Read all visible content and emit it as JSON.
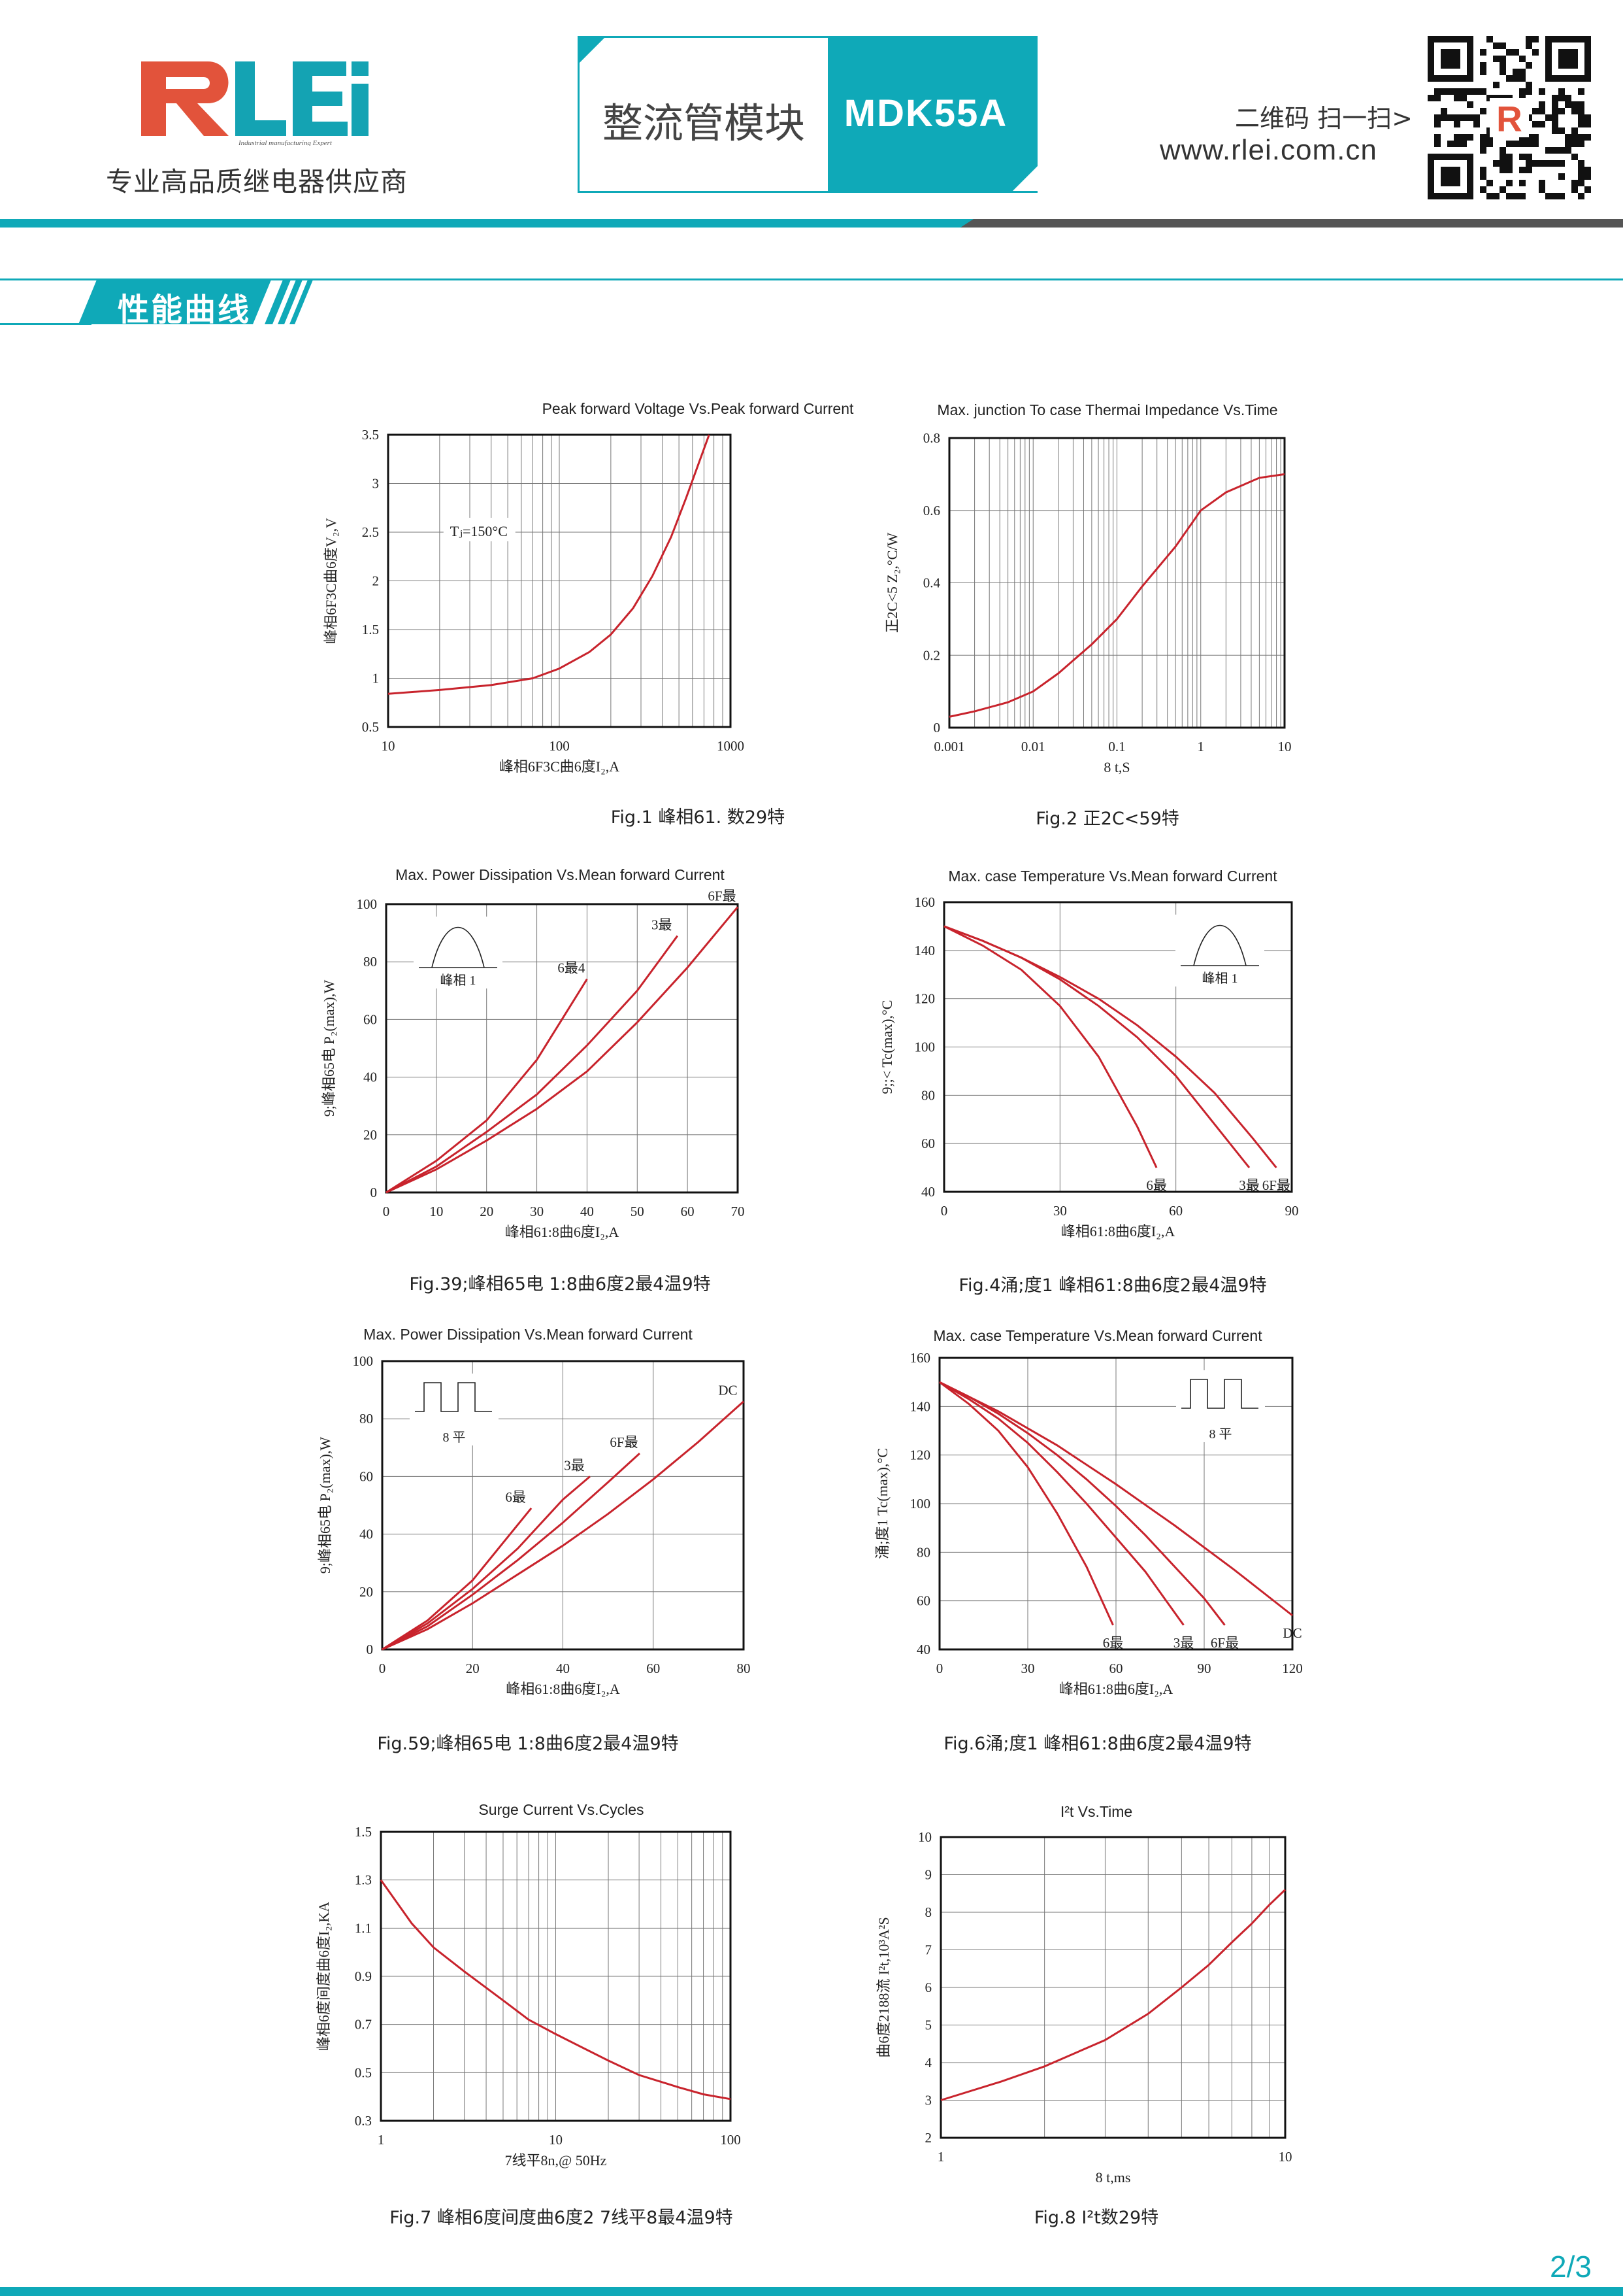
{
  "header": {
    "brand_logo": "RLEi",
    "logo_tagline": "Industrial manufacturing Expert",
    "slogan": "专业高品质继电器供应商",
    "product_name": "整流管模块",
    "model": "MDK55A",
    "qr_text": "二维码 扫一扫>",
    "website": "www.rlei.com.cn",
    "colors": {
      "teal": "#0fa9b8",
      "red": "#e2533b",
      "dark": "#555555",
      "curve": "#c8232c"
    }
  },
  "section": {
    "title": "性能曲线"
  },
  "footer": {
    "page_number": "2/3"
  },
  "figures": [
    {
      "title": "Peak forward Voltage Vs.Peak forward Current",
      "caption": "Fig.1 峰相61. 数29特",
      "annotation": "Tⱼ=150°C",
      "chart_data": {
        "type": "line",
        "xscale": "log",
        "xlim": [
          10,
          1000
        ],
        "ylim": [
          0.5,
          3.5
        ],
        "xticks": [
          "10",
          "100",
          "1000"
        ],
        "yticks": [
          "0.5",
          "1",
          "1.5",
          "2",
          "2.5",
          "3",
          "3.5"
        ],
        "xlabel": "峰相6F3C曲6度I₂,A",
        "ylabel": "峰相6F3C曲6度V₂,V",
        "series": [
          {
            "x": [
              10,
              20,
              40,
              70,
              100,
              150,
              200,
              270,
              350,
              450,
              550,
              650,
              750
            ],
            "y": [
              0.84,
              0.88,
              0.93,
              1.0,
              1.1,
              1.27,
              1.45,
              1.72,
              2.05,
              2.45,
              2.85,
              3.2,
              3.5
            ]
          }
        ]
      }
    },
    {
      "title": "Max. junction To case Thermai Impedance Vs.Time",
      "caption": "Fig.2 正2C<59特",
      "chart_data": {
        "type": "line",
        "xscale": "log",
        "xlim": [
          0.001,
          10
        ],
        "ylim": [
          0,
          0.8
        ],
        "xticks": [
          "0.001",
          "0.01",
          "0.1",
          "1",
          "10"
        ],
        "yticks": [
          "0",
          "0.2",
          "0.4",
          "0.6",
          "0.8"
        ],
        "xlabel": "8  t,S",
        "ylabel": "正2C<5 Z₂,°C/W",
        "series": [
          {
            "x": [
              0.001,
              0.002,
              0.005,
              0.01,
              0.02,
              0.05,
              0.1,
              0.2,
              0.5,
              1,
              2,
              5,
              10
            ],
            "y": [
              0.03,
              0.045,
              0.07,
              0.1,
              0.15,
              0.23,
              0.3,
              0.39,
              0.5,
              0.6,
              0.65,
              0.69,
              0.7
            ]
          }
        ]
      }
    },
    {
      "title": "Max. Power Dissipation Vs.Mean forward Current",
      "caption": "Fig.39;峰相65电 1:8曲6度2最4温9特",
      "icon": "half-sine",
      "icon_label": "峰相 1",
      "chart_data": {
        "type": "line",
        "xlim": [
          0,
          70
        ],
        "ylim": [
          0,
          100
        ],
        "xticks": [
          "0",
          "10",
          "20",
          "30",
          "40",
          "50",
          "60",
          "70"
        ],
        "yticks": [
          "0",
          "20",
          "40",
          "60",
          "80",
          "100"
        ],
        "xlabel": "峰相61:8曲6度I₂,A",
        "ylabel": "9;峰相65电 P₂(max),W",
        "series": [
          {
            "name": "6最4",
            "x": [
              0,
              10,
              20,
              30,
              40
            ],
            "y": [
              0,
              11,
              25,
              46,
              74
            ]
          },
          {
            "name": "3最",
            "x": [
              0,
              10,
              20,
              30,
              40,
              50,
              58
            ],
            "y": [
              0,
              9,
              21,
              34,
              51,
              70,
              89
            ]
          },
          {
            "name": "6F最",
            "x": [
              0,
              10,
              20,
              30,
              40,
              50,
              60,
              70
            ],
            "y": [
              0,
              8,
              18,
              29,
              42,
              59,
              78,
              99
            ]
          }
        ]
      }
    },
    {
      "title": "Max. case Temperature Vs.Mean forward Current",
      "caption": "Fig.4涌;度1 峰相61:8曲6度2最4温9特",
      "icon": "half-sine",
      "icon_label": "峰相 1",
      "chart_data": {
        "type": "line",
        "xlim": [
          0,
          90
        ],
        "ylim": [
          40,
          160
        ],
        "xticks": [
          "0",
          "30",
          "60",
          "90"
        ],
        "yticks": [
          "40",
          "60",
          "80",
          "100",
          "120",
          "140",
          "160"
        ],
        "xlabel": "峰相61:8曲6度I₂,A",
        "ylabel": "9;;< Tc(max),°C",
        "series": [
          {
            "name": "6最",
            "x": [
              0,
              10,
              20,
              30,
              40,
              50,
              55
            ],
            "y": [
              150,
              142,
              132,
              117,
              96,
              67,
              50
            ]
          },
          {
            "name": "3最",
            "x": [
              0,
              10,
              20,
              30,
              40,
              50,
              60,
              70,
              79
            ],
            "y": [
              150,
              144,
              137,
              128,
              117,
              104,
              88,
              68,
              50
            ]
          },
          {
            "name": "6F最",
            "x": [
              0,
              10,
              20,
              30,
              40,
              50,
              60,
              70,
              80,
              86
            ],
            "y": [
              150,
              144,
              137,
              129,
              120,
              109,
              96,
              81,
              62,
              50
            ]
          }
        ]
      }
    },
    {
      "title": "Max. Power Dissipation Vs.Mean forward Current",
      "caption": "Fig.59;峰相65电 1:8曲6度2最4温9特",
      "icon": "square-wave",
      "icon_label": "8 平",
      "chart_data": {
        "type": "line",
        "xlim": [
          0,
          80
        ],
        "ylim": [
          0,
          100
        ],
        "xticks": [
          "0",
          "20",
          "40",
          "60",
          "80"
        ],
        "yticks": [
          "0",
          "20",
          "40",
          "60",
          "80",
          "100"
        ],
        "xlabel": "峰相61:8曲6度I₂,A",
        "ylabel": "9;峰相65电 P₂(max),W",
        "series": [
          {
            "name": "6最",
            "x": [
              0,
              10,
              20,
              33
            ],
            "y": [
              0,
              10,
              24,
              49
            ]
          },
          {
            "name": "3最",
            "x": [
              0,
              10,
              20,
              30,
              40,
              46
            ],
            "y": [
              0,
              9,
              21,
              35,
              52,
              60
            ]
          },
          {
            "name": "6F最",
            "x": [
              0,
              10,
              20,
              30,
              40,
              50,
              57
            ],
            "y": [
              0,
              8,
              19,
              31,
              44,
              58,
              68
            ]
          },
          {
            "name": "DC",
            "x": [
              0,
              10,
              20,
              30,
              40,
              50,
              60,
              70,
              80
            ],
            "y": [
              0,
              7,
              16,
              26,
              36,
              47,
              59,
              72,
              86
            ]
          }
        ]
      }
    },
    {
      "title": "Max. case Temperature Vs.Mean forward Current",
      "caption": "Fig.6涌;度1 峰相61:8曲6度2最4温9特",
      "icon": "square-wave",
      "icon_label": "8 平",
      "chart_data": {
        "type": "line",
        "xlim": [
          0,
          120
        ],
        "ylim": [
          40,
          160
        ],
        "xticks": [
          "0",
          "30",
          "60",
          "90",
          "120"
        ],
        "yticks": [
          "40",
          "60",
          "80",
          "100",
          "120",
          "140",
          "160"
        ],
        "xlabel": "峰相61:8曲6度I₂,A",
        "ylabel": "涌;度1 Tc(max),°C",
        "series": [
          {
            "name": "6最",
            "x": [
              0,
              10,
              20,
              30,
              40,
              50,
              59
            ],
            "y": [
              150,
              141,
              130,
              115,
              96,
              74,
              50
            ]
          },
          {
            "name": "3最",
            "x": [
              0,
              10,
              20,
              30,
              40,
              50,
              60,
              70,
              83
            ],
            "y": [
              150,
              143,
              135,
              125,
              113,
              100,
              86,
              72,
              50
            ]
          },
          {
            "name": "6F最",
            "x": [
              0,
              10,
              20,
              30,
              40,
              50,
              60,
              70,
              80,
              90,
              97
            ],
            "y": [
              150,
              144,
              137,
              129,
              120,
              110,
              99,
              87,
              74,
              61,
              50
            ]
          },
          {
            "name": "DC",
            "x": [
              0,
              20,
              40,
              60,
              80,
              100,
              120
            ],
            "y": [
              150,
              138,
              124,
              108,
              91,
              73,
              54
            ]
          }
        ]
      }
    },
    {
      "title": "Surge Current Vs.Cycles",
      "caption": "Fig.7 峰相6度间度曲6度2 7线平8最4温9特",
      "chart_data": {
        "type": "line",
        "xscale": "log",
        "xlim": [
          1,
          100
        ],
        "ylim": [
          0.3,
          1.5
        ],
        "xticks": [
          "1",
          "10",
          "100"
        ],
        "yticks": [
          "0.3",
          "0.5",
          "0.7",
          "0.9",
          "1.1",
          "1.3",
          "1.5"
        ],
        "xlabel": "7线平8n,@ 50Hz",
        "ylabel": "峰相6度间度曲6度I₂,KA",
        "series": [
          {
            "x": [
              1,
              1.5,
              2,
              3,
              5,
              7,
              10,
              20,
              30,
              50,
              70,
              100
            ],
            "y": [
              1.3,
              1.12,
              1.02,
              0.92,
              0.8,
              0.72,
              0.66,
              0.55,
              0.49,
              0.44,
              0.41,
              0.39
            ]
          }
        ]
      }
    },
    {
      "title": "I²t  Vs.Time",
      "caption": "Fig.8 I²t数29特",
      "chart_data": {
        "type": "line",
        "xscale": "log",
        "xlim": [
          1,
          10
        ],
        "ylim": [
          2,
          10
        ],
        "xticks": [
          "1",
          "10"
        ],
        "yticks": [
          "2",
          "3",
          "4",
          "5",
          "6",
          "7",
          "8",
          "9",
          "10"
        ],
        "xlabel": "8  t,ms",
        "ylabel": "曲6度2188流 I²t,10³A²S",
        "series": [
          {
            "x": [
              1,
              1.5,
              2,
              3,
              4,
              5,
              6,
              7,
              8,
              9,
              10
            ],
            "y": [
              3.0,
              3.5,
              3.9,
              4.6,
              5.3,
              6.0,
              6.6,
              7.2,
              7.7,
              8.2,
              8.6
            ]
          }
        ]
      }
    }
  ]
}
